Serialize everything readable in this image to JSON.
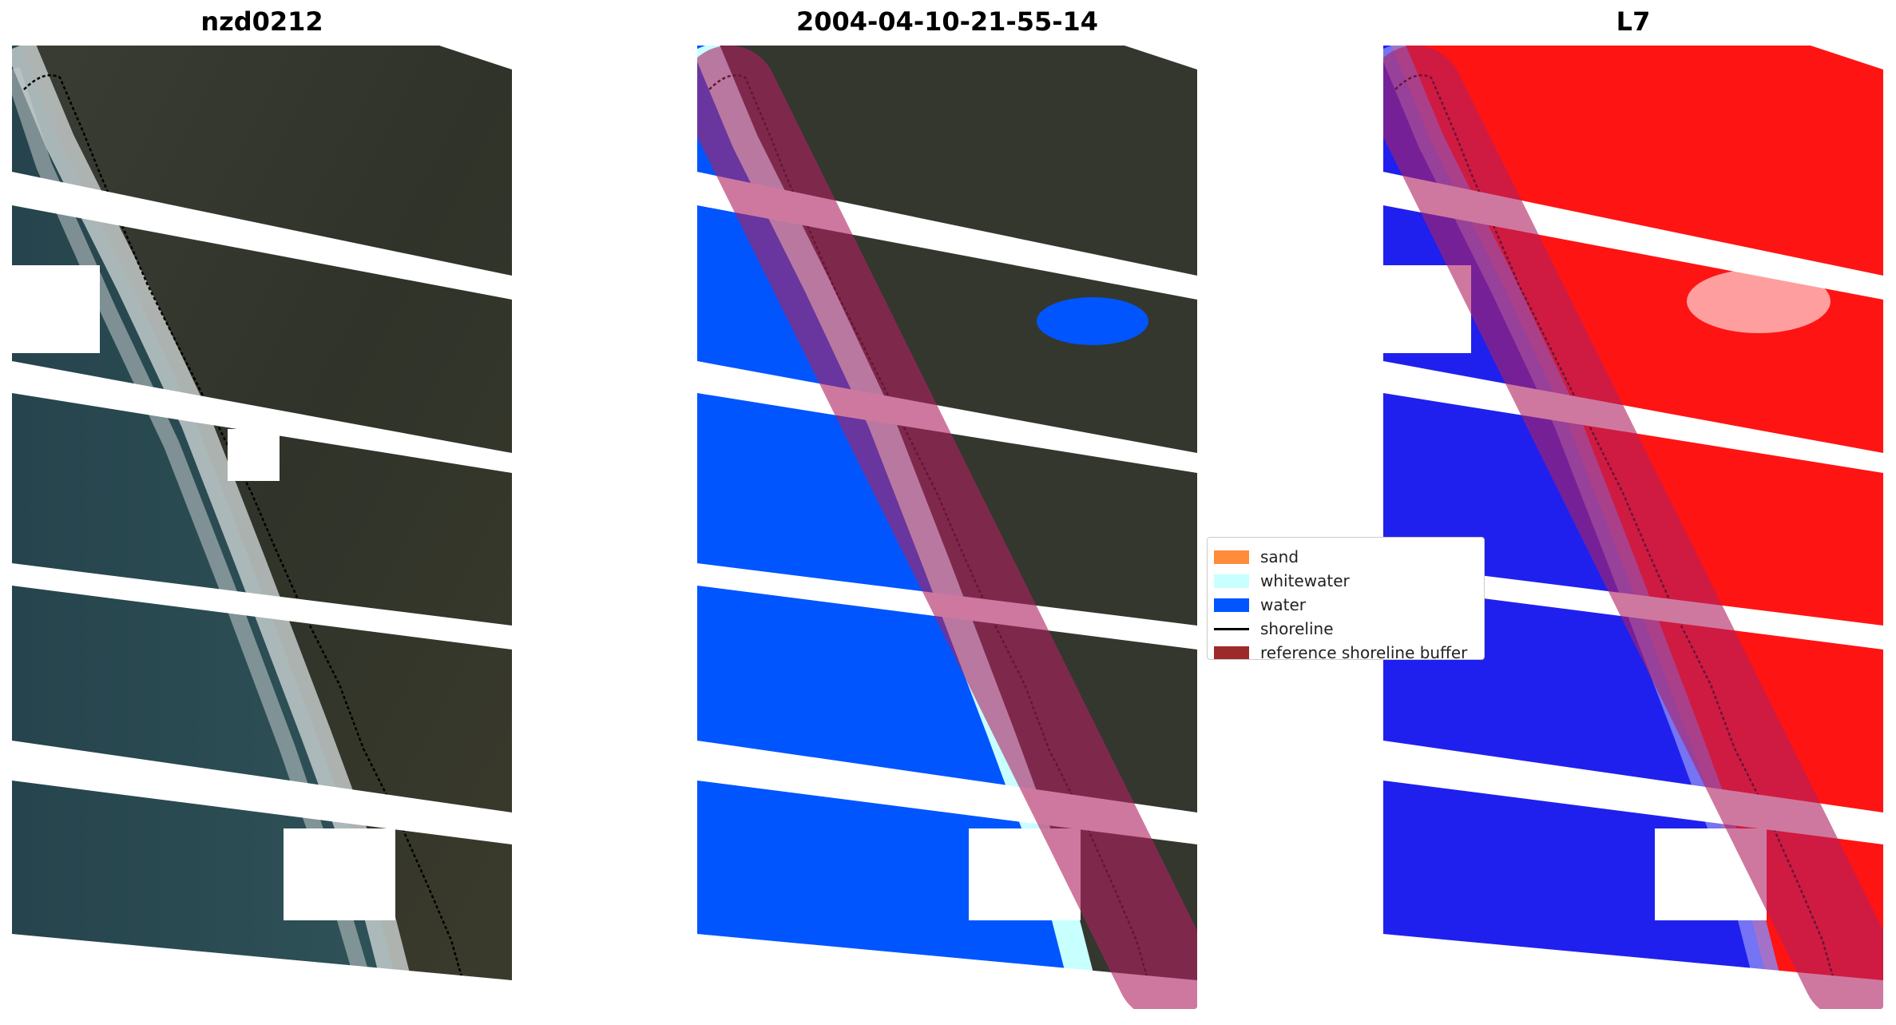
{
  "panels": [
    {
      "title": "nzd0212"
    },
    {
      "title": "2004-04-10-21-55-14"
    },
    {
      "title": "L7"
    }
  ],
  "legend": {
    "items": [
      {
        "label": "sand",
        "color": "#ff8c3a",
        "kind": "patch"
      },
      {
        "label": "whitewater",
        "color": "#c8ffff",
        "kind": "patch"
      },
      {
        "label": "water",
        "color": "#0055ff",
        "kind": "patch"
      },
      {
        "label": "shoreline",
        "color": "#000000",
        "kind": "line"
      },
      {
        "label": "reference shoreline buffer",
        "color": "#9c2a2a",
        "kind": "patch"
      }
    ]
  },
  "colors": {
    "land": "#36392f",
    "ocean": "#2a4a52",
    "water_class": "#0055ff",
    "whitewater_class": "#c8ffff",
    "buffer": "#b02060",
    "index_land": "#ff1010",
    "index_water": "#2020ee",
    "nodata": "#ffffff"
  }
}
